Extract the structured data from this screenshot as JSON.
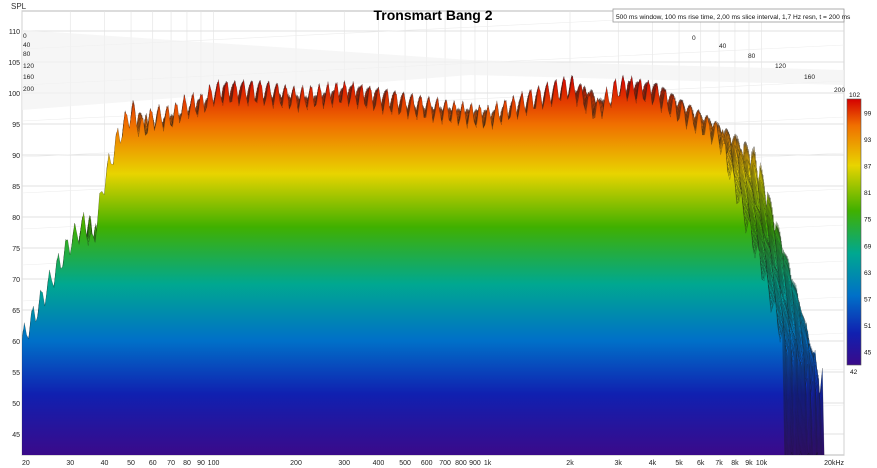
{
  "chart_data": {
    "type": "waterfall",
    "title": "Tronsmart Bang 2",
    "subtitle": "500 ms window, 100 ms rise time, 2,00 ms slice interval, 1,7 Hz resn, t = 200 ms",
    "ylabel": "SPL",
    "y_ticks": [
      45,
      50,
      55,
      60,
      65,
      70,
      75,
      80,
      85,
      90,
      95,
      100,
      105,
      110
    ],
    "ylim": [
      42,
      111
    ],
    "x_scale": "log",
    "xlim": [
      20,
      20000
    ],
    "x_ticks": [
      {
        "v": 20,
        "l": "20"
      },
      {
        "v": 30,
        "l": "30"
      },
      {
        "v": 40,
        "l": "40"
      },
      {
        "v": 50,
        "l": "50"
      },
      {
        "v": 60,
        "l": "60"
      },
      {
        "v": 70,
        "l": "70"
      },
      {
        "v": 80,
        "l": "80"
      },
      {
        "v": 90,
        "l": "90"
      },
      {
        "v": 100,
        "l": "100"
      },
      {
        "v": 200,
        "l": "200"
      },
      {
        "v": 300,
        "l": "300"
      },
      {
        "v": 400,
        "l": "400"
      },
      {
        "v": 500,
        "l": "500"
      },
      {
        "v": 600,
        "l": "600"
      },
      {
        "v": 700,
        "l": "700"
      },
      {
        "v": 800,
        "l": "800"
      },
      {
        "v": 900,
        "l": "900"
      },
      {
        "v": 1000,
        "l": "1k"
      },
      {
        "v": 2000,
        "l": "2k"
      },
      {
        "v": 3000,
        "l": "3k"
      },
      {
        "v": 4000,
        "l": "4k"
      },
      {
        "v": 5000,
        "l": "5k"
      },
      {
        "v": 6000,
        "l": "6k"
      },
      {
        "v": 7000,
        "l": "7k"
      },
      {
        "v": 8000,
        "l": "8k"
      },
      {
        "v": 9000,
        "l": "9k"
      },
      {
        "v": 10000,
        "l": "10k"
      },
      {
        "v": 20000,
        "l": "20kHz"
      }
    ],
    "time_ticks_ms": [
      "0",
      "40",
      "80",
      "120",
      "160",
      "200"
    ],
    "colorbar": {
      "min": 42,
      "max": 102,
      "ticks": [
        "102",
        "99",
        "93",
        "87",
        "81",
        "75",
        "69",
        "63",
        "57",
        "51",
        "45",
        "42"
      ]
    },
    "front_slice_estimate": {
      "x": [
        20,
        25,
        30,
        34,
        36,
        40,
        45,
        50,
        55,
        60,
        70,
        80,
        90,
        100,
        120,
        150,
        200,
        300,
        500,
        700,
        1000,
        1500,
        2000,
        2500,
        3000,
        4000,
        5000,
        6000,
        7000,
        8000,
        9000,
        10000,
        12000
      ],
      "y": [
        60,
        69,
        76,
        79,
        75,
        86,
        93,
        97,
        94,
        96,
        96,
        98,
        98,
        100,
        100,
        100,
        99,
        100,
        98,
        97,
        96,
        99,
        101,
        97,
        101,
        100,
        97,
        95,
        93,
        85,
        78,
        72,
        60
      ]
    }
  }
}
